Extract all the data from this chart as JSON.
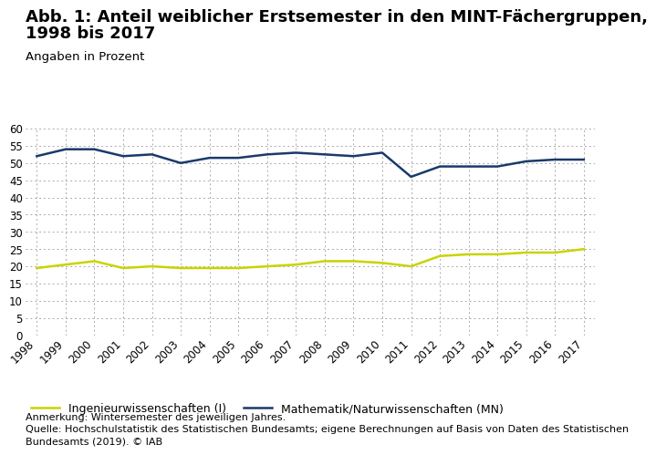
{
  "title_line1": "Abb. 1: Anteil weiblicher Erstsemester in den MINT-Fächergruppen,",
  "title_line2": "1998 bis 2017",
  "subtitle": "Angaben in Prozent",
  "years": [
    1998,
    1999,
    2000,
    2001,
    2002,
    2003,
    2004,
    2005,
    2006,
    2007,
    2008,
    2009,
    2010,
    2011,
    2012,
    2013,
    2014,
    2015,
    2016,
    2017
  ],
  "ingenieur": [
    19.5,
    20.5,
    21.5,
    19.5,
    20.0,
    19.5,
    19.5,
    19.5,
    20.0,
    20.5,
    21.5,
    21.5,
    21.0,
    20.0,
    23.0,
    23.5,
    23.5,
    24.0,
    24.0,
    25.0
  ],
  "mathe_natur": [
    52.0,
    54.0,
    54.0,
    52.0,
    52.5,
    50.0,
    51.5,
    51.5,
    52.5,
    53.0,
    52.5,
    52.0,
    53.0,
    46.0,
    49.0,
    49.0,
    49.0,
    50.5,
    51.0,
    51.0
  ],
  "ingenieur_color": "#c8d400",
  "mathe_natur_color": "#1a3a6b",
  "ingenieur_label": "Ingenieurwissenschaften (I)",
  "mathe_natur_label": "Mathematik/Naturwissenschaften (MN)",
  "ylim": [
    0,
    60
  ],
  "yticks": [
    0,
    5,
    10,
    15,
    20,
    25,
    30,
    35,
    40,
    45,
    50,
    55,
    60
  ],
  "background_color": "#ffffff",
  "annotation": "Anmerkung: Wintersemester des jeweiligen Jahres.",
  "source_line1": "Quelle: Hochschulstatistik des Statistischen Bundesamts; eigene Berechnungen auf Basis von Daten des Statistischen",
  "source_line2": "Bundesamts (2019). © IAB",
  "title_fontsize": 13,
  "subtitle_fontsize": 9.5,
  "tick_fontsize": 8.5,
  "legend_fontsize": 9,
  "annotation_fontsize": 8,
  "linewidth": 1.8
}
